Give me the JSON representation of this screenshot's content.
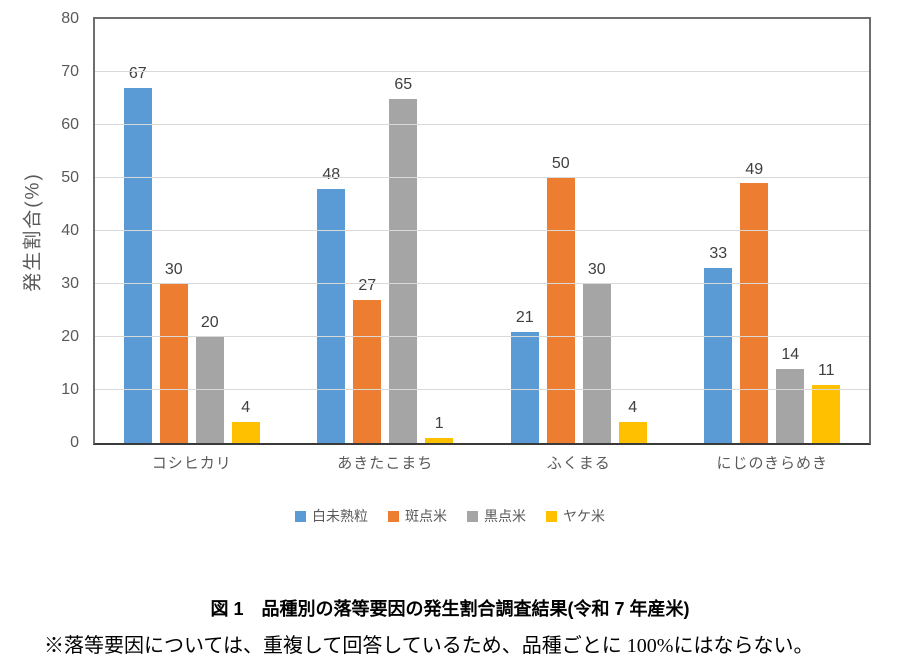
{
  "chart_data": {
    "type": "bar",
    "categories": [
      "コシヒカリ",
      "あきたこまち",
      "ふくまる",
      "にじのきらめき"
    ],
    "series": [
      {
        "name": "白未熟粒",
        "color": "#5B9BD5",
        "values": [
          67,
          48,
          21,
          33
        ]
      },
      {
        "name": "斑点米",
        "color": "#ED7D31",
        "values": [
          30,
          27,
          50,
          49
        ]
      },
      {
        "name": "黒点米",
        "color": "#A5A5A5",
        "values": [
          20,
          65,
          30,
          14
        ]
      },
      {
        "name": "ヤケ米",
        "color": "#FFC000",
        "values": [
          4,
          1,
          4,
          11
        ]
      }
    ],
    "xlabel": "",
    "ylabel": "発生割合(%)",
    "ylim": [
      0,
      80
    ],
    "yticks": [
      0,
      10,
      20,
      30,
      40,
      50,
      60,
      70,
      80
    ],
    "grid": true,
    "legend_position": "bottom",
    "value_labels": true
  },
  "caption": "図 1　品種別の落等要因の発生割合調査結果(令和 7 年産米)",
  "note": "※落等要因については、重複して回答しているため、品種ごとに 100%にはならない。",
  "style": {
    "grid_color": "#D9D9D9",
    "axis_border_color": "#6E6E6E",
    "baseline_color": "#3A3A3A",
    "tick_label_color": "#595959",
    "value_label_color": "#404040",
    "background": "#FFFFFF"
  }
}
